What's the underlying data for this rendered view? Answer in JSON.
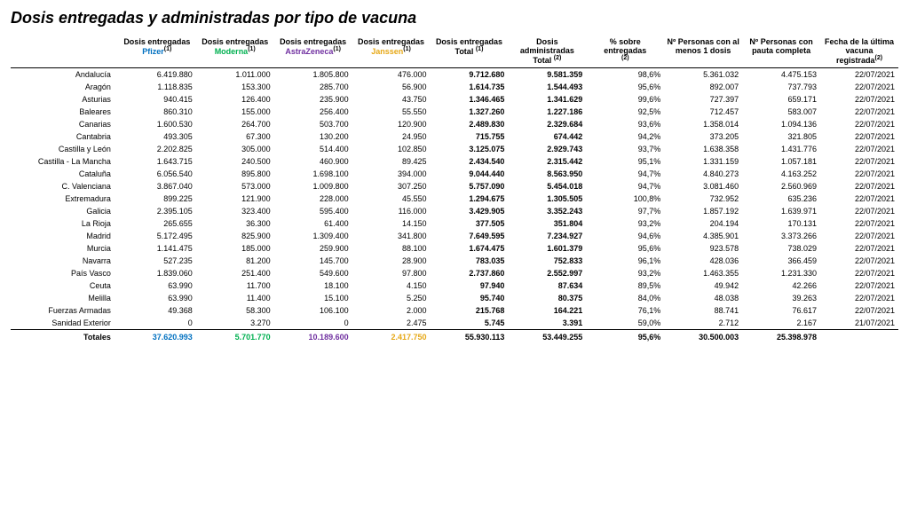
{
  "title": "Dosis entregadas y administradas por tipo de vacuna",
  "colors": {
    "pfizer": "#0070c0",
    "moderna": "#00b050",
    "astrazeneca": "#7030a0",
    "janssen": "#e6a817",
    "text": "#000000"
  },
  "headers": {
    "region": "",
    "pfizer_pre": "Dosis entregadas",
    "pfizer_brand": "Pfizer",
    "moderna_pre": "Dosis entregadas",
    "moderna_brand": "Moderna",
    "astra_pre": "Dosis entregadas",
    "astra_brand": "AstraZeneca",
    "janssen_pre": "Dosis entregadas",
    "janssen_brand": "Janssen",
    "total_entregadas": "Dosis entregadas Total",
    "total_administradas": "Dosis administradas Total",
    "pct": "% sobre entregadas",
    "una_dosis": "Nº Personas con al menos 1 dosis",
    "pauta": "Nº Personas con pauta completa",
    "fecha": "Fecha de la última vacuna registrada",
    "sup1": "(1)",
    "sup2": "(2)"
  },
  "rows": [
    {
      "region": "Andalucía",
      "pfizer": "6.419.880",
      "moderna": "1.011.000",
      "astra": "1.805.800",
      "janssen": "476.000",
      "tot_ent": "9.712.680",
      "tot_adm": "9.581.359",
      "pct": "98,6%",
      "d1": "5.361.032",
      "pc": "4.475.153",
      "fecha": "22/07/2021"
    },
    {
      "region": "Aragón",
      "pfizer": "1.118.835",
      "moderna": "153.300",
      "astra": "285.700",
      "janssen": "56.900",
      "tot_ent": "1.614.735",
      "tot_adm": "1.544.493",
      "pct": "95,6%",
      "d1": "892.007",
      "pc": "737.793",
      "fecha": "22/07/2021"
    },
    {
      "region": "Asturias",
      "pfizer": "940.415",
      "moderna": "126.400",
      "astra": "235.900",
      "janssen": "43.750",
      "tot_ent": "1.346.465",
      "tot_adm": "1.341.629",
      "pct": "99,6%",
      "d1": "727.397",
      "pc": "659.171",
      "fecha": "22/07/2021"
    },
    {
      "region": "Baleares",
      "pfizer": "860.310",
      "moderna": "155.000",
      "astra": "256.400",
      "janssen": "55.550",
      "tot_ent": "1.327.260",
      "tot_adm": "1.227.186",
      "pct": "92,5%",
      "d1": "712.457",
      "pc": "583.007",
      "fecha": "22/07/2021"
    },
    {
      "region": "Canarias",
      "pfizer": "1.600.530",
      "moderna": "264.700",
      "astra": "503.700",
      "janssen": "120.900",
      "tot_ent": "2.489.830",
      "tot_adm": "2.329.684",
      "pct": "93,6%",
      "d1": "1.358.014",
      "pc": "1.094.136",
      "fecha": "22/07/2021"
    },
    {
      "region": "Cantabria",
      "pfizer": "493.305",
      "moderna": "67.300",
      "astra": "130.200",
      "janssen": "24.950",
      "tot_ent": "715.755",
      "tot_adm": "674.442",
      "pct": "94,2%",
      "d1": "373.205",
      "pc": "321.805",
      "fecha": "22/07/2021"
    },
    {
      "region": "Castilla y León",
      "pfizer": "2.202.825",
      "moderna": "305.000",
      "astra": "514.400",
      "janssen": "102.850",
      "tot_ent": "3.125.075",
      "tot_adm": "2.929.743",
      "pct": "93,7%",
      "d1": "1.638.358",
      "pc": "1.431.776",
      "fecha": "22/07/2021"
    },
    {
      "region": "Castilla - La Mancha",
      "pfizer": "1.643.715",
      "moderna": "240.500",
      "astra": "460.900",
      "janssen": "89.425",
      "tot_ent": "2.434.540",
      "tot_adm": "2.315.442",
      "pct": "95,1%",
      "d1": "1.331.159",
      "pc": "1.057.181",
      "fecha": "22/07/2021"
    },
    {
      "region": "Cataluña",
      "pfizer": "6.056.540",
      "moderna": "895.800",
      "astra": "1.698.100",
      "janssen": "394.000",
      "tot_ent": "9.044.440",
      "tot_adm": "8.563.950",
      "pct": "94,7%",
      "d1": "4.840.273",
      "pc": "4.163.252",
      "fecha": "22/07/2021"
    },
    {
      "region": "C. Valenciana",
      "pfizer": "3.867.040",
      "moderna": "573.000",
      "astra": "1.009.800",
      "janssen": "307.250",
      "tot_ent": "5.757.090",
      "tot_adm": "5.454.018",
      "pct": "94,7%",
      "d1": "3.081.460",
      "pc": "2.560.969",
      "fecha": "22/07/2021"
    },
    {
      "region": "Extremadura",
      "pfizer": "899.225",
      "moderna": "121.900",
      "astra": "228.000",
      "janssen": "45.550",
      "tot_ent": "1.294.675",
      "tot_adm": "1.305.505",
      "pct": "100,8%",
      "d1": "732.952",
      "pc": "635.236",
      "fecha": "22/07/2021"
    },
    {
      "region": "Galicia",
      "pfizer": "2.395.105",
      "moderna": "323.400",
      "astra": "595.400",
      "janssen": "116.000",
      "tot_ent": "3.429.905",
      "tot_adm": "3.352.243",
      "pct": "97,7%",
      "d1": "1.857.192",
      "pc": "1.639.971",
      "fecha": "22/07/2021"
    },
    {
      "region": "La Rioja",
      "pfizer": "265.655",
      "moderna": "36.300",
      "astra": "61.400",
      "janssen": "14.150",
      "tot_ent": "377.505",
      "tot_adm": "351.804",
      "pct": "93,2%",
      "d1": "204.194",
      "pc": "170.131",
      "fecha": "22/07/2021"
    },
    {
      "region": "Madrid",
      "pfizer": "5.172.495",
      "moderna": "825.900",
      "astra": "1.309.400",
      "janssen": "341.800",
      "tot_ent": "7.649.595",
      "tot_adm": "7.234.927",
      "pct": "94,6%",
      "d1": "4.385.901",
      "pc": "3.373.266",
      "fecha": "22/07/2021"
    },
    {
      "region": "Murcia",
      "pfizer": "1.141.475",
      "moderna": "185.000",
      "astra": "259.900",
      "janssen": "88.100",
      "tot_ent": "1.674.475",
      "tot_adm": "1.601.379",
      "pct": "95,6%",
      "d1": "923.578",
      "pc": "738.029",
      "fecha": "22/07/2021"
    },
    {
      "region": "Navarra",
      "pfizer": "527.235",
      "moderna": "81.200",
      "astra": "145.700",
      "janssen": "28.900",
      "tot_ent": "783.035",
      "tot_adm": "752.833",
      "pct": "96,1%",
      "d1": "428.036",
      "pc": "366.459",
      "fecha": "22/07/2021"
    },
    {
      "region": "País Vasco",
      "pfizer": "1.839.060",
      "moderna": "251.400",
      "astra": "549.600",
      "janssen": "97.800",
      "tot_ent": "2.737.860",
      "tot_adm": "2.552.997",
      "pct": "93,2%",
      "d1": "1.463.355",
      "pc": "1.231.330",
      "fecha": "22/07/2021"
    },
    {
      "region": "Ceuta",
      "pfizer": "63.990",
      "moderna": "11.700",
      "astra": "18.100",
      "janssen": "4.150",
      "tot_ent": "97.940",
      "tot_adm": "87.634",
      "pct": "89,5%",
      "d1": "49.942",
      "pc": "42.266",
      "fecha": "22/07/2021"
    },
    {
      "region": "Melilla",
      "pfizer": "63.990",
      "moderna": "11.400",
      "astra": "15.100",
      "janssen": "5.250",
      "tot_ent": "95.740",
      "tot_adm": "80.375",
      "pct": "84,0%",
      "d1": "48.038",
      "pc": "39.263",
      "fecha": "22/07/2021"
    },
    {
      "region": "Fuerzas Armadas",
      "pfizer": "49.368",
      "moderna": "58.300",
      "astra": "106.100",
      "janssen": "2.000",
      "tot_ent": "215.768",
      "tot_adm": "164.221",
      "pct": "76,1%",
      "d1": "88.741",
      "pc": "76.617",
      "fecha": "22/07/2021"
    },
    {
      "region": "Sanidad Exterior",
      "pfizer": "0",
      "moderna": "3.270",
      "astra": "0",
      "janssen": "2.475",
      "tot_ent": "5.745",
      "tot_adm": "3.391",
      "pct": "59,0%",
      "d1": "2.712",
      "pc": "2.167",
      "fecha": "21/07/2021"
    }
  ],
  "totals": {
    "label": "Totales",
    "pfizer": "37.620.993",
    "moderna": "5.701.770",
    "astra": "10.189.600",
    "janssen": "2.417.750",
    "tot_ent": "55.930.113",
    "tot_adm": "53.449.255",
    "pct": "95,6%",
    "d1": "30.500.003",
    "pc": "25.398.978",
    "fecha": ""
  }
}
